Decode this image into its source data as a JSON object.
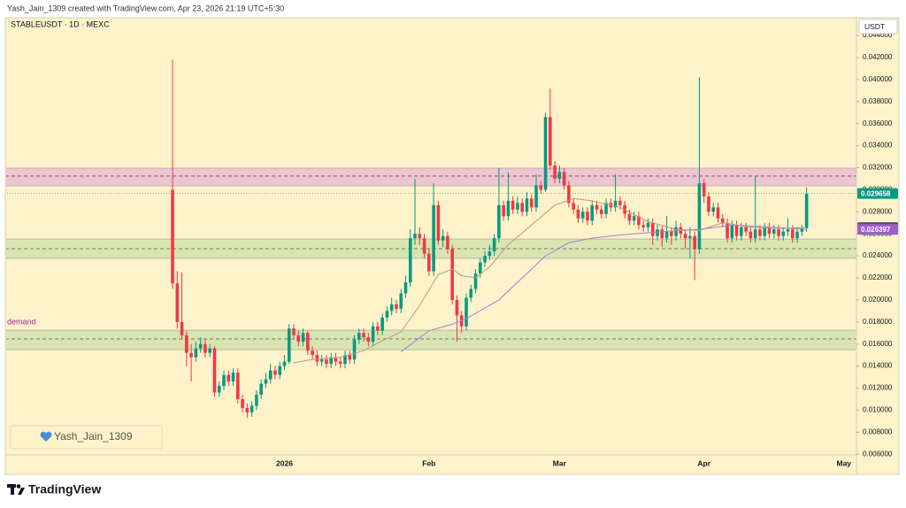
{
  "header": {
    "text": "Yash_Jain_1309 created with TradingView.com, Apr 23, 2026 21:19 UTC+5:30"
  },
  "watermark": {
    "text": "Yash_Jain_1309"
  },
  "footer": {
    "brand": "TradingView"
  },
  "chart_data": {
    "type": "candlestick",
    "title": "STABLEUSDT · 1D · MEXC",
    "unit_label": "USDT",
    "up_color": "#089981",
    "down_color": "#f23645",
    "background": "#fdf2c9",
    "open": [
      0.03,
      0.0215,
      0.018,
      0.0168,
      0.0152,
      0.0148,
      0.0156,
      0.016,
      0.0152,
      0.0156,
      0.0116,
      0.0122,
      0.0132,
      0.0126,
      0.0134,
      0.011,
      0.0102,
      0.0098,
      0.0104,
      0.0114,
      0.0124,
      0.0128,
      0.0136,
      0.0132,
      0.014,
      0.0144,
      0.0174,
      0.0168,
      0.0162,
      0.017,
      0.0154,
      0.015,
      0.0144,
      0.0146,
      0.0142,
      0.0148,
      0.0144,
      0.0142,
      0.015,
      0.0146,
      0.0164,
      0.017,
      0.0166,
      0.0162,
      0.0176,
      0.0172,
      0.0184,
      0.019,
      0.0196,
      0.0192,
      0.0206,
      0.0216,
      0.0256,
      0.026,
      0.0256,
      0.0242,
      0.0226,
      0.0286,
      0.0254,
      0.0258,
      0.0246,
      0.02,
      0.0186,
      0.0176,
      0.0202,
      0.021,
      0.0224,
      0.0234,
      0.024,
      0.0244,
      0.0256,
      0.0286,
      0.0276,
      0.029,
      0.0282,
      0.0288,
      0.028,
      0.0292,
      0.0284,
      0.0304,
      0.03,
      0.0366,
      0.0322,
      0.031,
      0.0316,
      0.0304,
      0.0288,
      0.0282,
      0.0274,
      0.028,
      0.0272,
      0.0286,
      0.0282,
      0.0278,
      0.0288,
      0.0284,
      0.029,
      0.0286,
      0.0278,
      0.0272,
      0.0276,
      0.0268,
      0.0266,
      0.027,
      0.0258,
      0.0264,
      0.0256,
      0.0262,
      0.0258,
      0.0266,
      0.026,
      0.0256,
      0.0258,
      0.0246,
      0.0306,
      0.0294,
      0.028,
      0.0284,
      0.0274,
      0.027,
      0.0256,
      0.0268,
      0.0258,
      0.0266,
      0.0262,
      0.0256,
      0.0264,
      0.0258,
      0.0266,
      0.026,
      0.0264,
      0.0258,
      0.0262,
      0.0264,
      0.0256,
      0.0262,
      0.0265
    ],
    "high": [
      0.0418,
      0.0226,
      0.0225,
      0.0172,
      0.016,
      0.0162,
      0.0166,
      0.0164,
      0.016,
      0.0158,
      0.0126,
      0.0136,
      0.0136,
      0.0138,
      0.0138,
      0.0114,
      0.0106,
      0.0108,
      0.0118,
      0.0128,
      0.0134,
      0.0142,
      0.014,
      0.0144,
      0.015,
      0.0178,
      0.0178,
      0.0172,
      0.0174,
      0.0172,
      0.0158,
      0.0154,
      0.015,
      0.015,
      0.0152,
      0.0152,
      0.0148,
      0.0154,
      0.0154,
      0.0168,
      0.0174,
      0.0174,
      0.017,
      0.018,
      0.018,
      0.0188,
      0.0194,
      0.0202,
      0.02,
      0.021,
      0.0222,
      0.0264,
      0.031,
      0.0266,
      0.026,
      0.0246,
      0.0306,
      0.029,
      0.0264,
      0.0262,
      0.025,
      0.0204,
      0.019,
      0.0206,
      0.0214,
      0.0228,
      0.0238,
      0.0244,
      0.025,
      0.026,
      0.032,
      0.029,
      0.0316,
      0.0294,
      0.0294,
      0.0292,
      0.0298,
      0.0296,
      0.0314,
      0.0308,
      0.037,
      0.0392,
      0.0326,
      0.0322,
      0.032,
      0.0308,
      0.0292,
      0.0286,
      0.0284,
      0.0284,
      0.029,
      0.029,
      0.0286,
      0.0292,
      0.0292,
      0.0314,
      0.0294,
      0.029,
      0.0282,
      0.028,
      0.028,
      0.0272,
      0.0274,
      0.0274,
      0.0268,
      0.0268,
      0.0276,
      0.0266,
      0.0272,
      0.027,
      0.0264,
      0.0266,
      0.0262,
      0.0402,
      0.031,
      0.0298,
      0.0288,
      0.0288,
      0.0278,
      0.0274,
      0.0272,
      0.0272,
      0.027,
      0.027,
      0.0266,
      0.0312,
      0.0268,
      0.027,
      0.027,
      0.0268,
      0.0268,
      0.0266,
      0.0274,
      0.0268,
      0.0266,
      0.0268,
      0.0302
    ],
    "low": [
      0.021,
      0.0174,
      0.0164,
      0.014,
      0.0126,
      0.0144,
      0.0152,
      0.0148,
      0.0148,
      0.0112,
      0.0112,
      0.0118,
      0.0122,
      0.0122,
      0.0106,
      0.0098,
      0.0093,
      0.0094,
      0.01,
      0.011,
      0.012,
      0.0124,
      0.0128,
      0.0128,
      0.0136,
      0.0142,
      0.0164,
      0.0158,
      0.0158,
      0.015,
      0.0146,
      0.014,
      0.014,
      0.0138,
      0.0138,
      0.014,
      0.0138,
      0.0138,
      0.0142,
      0.0142,
      0.016,
      0.0162,
      0.0158,
      0.0158,
      0.0168,
      0.0168,
      0.018,
      0.0186,
      0.0188,
      0.0188,
      0.0202,
      0.0212,
      0.025,
      0.025,
      0.0238,
      0.0222,
      0.0222,
      0.025,
      0.0248,
      0.0242,
      0.0196,
      0.0162,
      0.017,
      0.0172,
      0.0198,
      0.0206,
      0.022,
      0.023,
      0.0236,
      0.024,
      0.0252,
      0.0272,
      0.0272,
      0.0278,
      0.0278,
      0.0276,
      0.0276,
      0.028,
      0.028,
      0.0296,
      0.0298,
      0.0318,
      0.0306,
      0.0306,
      0.03,
      0.0284,
      0.0278,
      0.027,
      0.027,
      0.0268,
      0.0268,
      0.0278,
      0.0274,
      0.0274,
      0.028,
      0.028,
      0.0282,
      0.0274,
      0.0268,
      0.0268,
      0.0264,
      0.0262,
      0.0262,
      0.025,
      0.0254,
      0.0248,
      0.0252,
      0.025,
      0.0254,
      0.0256,
      0.0246,
      0.0238,
      0.0218,
      0.0242,
      0.0288,
      0.0276,
      0.0276,
      0.027,
      0.0266,
      0.0252,
      0.0252,
      0.0254,
      0.0254,
      0.0258,
      0.0252,
      0.0252,
      0.0254,
      0.0254,
      0.0256,
      0.0256,
      0.0254,
      0.0254,
      0.0258,
      0.0252,
      0.0252,
      0.0258,
      0.0262
    ],
    "close": [
      0.0215,
      0.018,
      0.0168,
      0.0152,
      0.0148,
      0.0156,
      0.016,
      0.0152,
      0.0156,
      0.0116,
      0.0122,
      0.0132,
      0.0126,
      0.0134,
      0.011,
      0.0102,
      0.0098,
      0.0104,
      0.0114,
      0.0124,
      0.0128,
      0.0136,
      0.0132,
      0.014,
      0.0144,
      0.0174,
      0.0168,
      0.0162,
      0.017,
      0.0154,
      0.015,
      0.0144,
      0.0146,
      0.0142,
      0.0148,
      0.0144,
      0.0142,
      0.015,
      0.0146,
      0.0164,
      0.017,
      0.0166,
      0.0162,
      0.0176,
      0.0172,
      0.0184,
      0.019,
      0.0196,
      0.0192,
      0.0206,
      0.0216,
      0.0256,
      0.026,
      0.0256,
      0.0242,
      0.0226,
      0.0286,
      0.0254,
      0.0258,
      0.0246,
      0.02,
      0.0186,
      0.0176,
      0.0202,
      0.021,
      0.0224,
      0.0234,
      0.024,
      0.0244,
      0.0256,
      0.0286,
      0.0276,
      0.029,
      0.0282,
      0.0288,
      0.028,
      0.0292,
      0.0284,
      0.0304,
      0.03,
      0.0366,
      0.0322,
      0.031,
      0.0316,
      0.0304,
      0.0288,
      0.0282,
      0.0274,
      0.028,
      0.0272,
      0.0286,
      0.0282,
      0.0278,
      0.0288,
      0.0284,
      0.029,
      0.0286,
      0.0278,
      0.0272,
      0.0276,
      0.0268,
      0.0266,
      0.027,
      0.0258,
      0.0264,
      0.0256,
      0.0262,
      0.0258,
      0.0266,
      0.026,
      0.0256,
      0.0258,
      0.0246,
      0.0306,
      0.0294,
      0.028,
      0.0284,
      0.0274,
      0.027,
      0.0256,
      0.0268,
      0.0258,
      0.0266,
      0.0262,
      0.0256,
      0.0264,
      0.0258,
      0.0266,
      0.026,
      0.0264,
      0.0258,
      0.0262,
      0.0264,
      0.0256,
      0.0262,
      0.0265,
      0.029658
    ],
    "series": [
      {
        "color": "#b89b7e",
        "label_color": "#5b4a78",
        "x": [
          26,
          30,
          36,
          41,
          45,
          49,
          53,
          57,
          60,
          62,
          65,
          68,
          72,
          77,
          82,
          86,
          90,
          96,
          102,
          108,
          113,
          118,
          124,
          130,
          136
        ],
        "values": [
          0.0143,
          0.0146,
          0.0148,
          0.0154,
          0.0163,
          0.0171,
          0.0195,
          0.0223,
          0.0228,
          0.0222,
          0.022,
          0.023,
          0.025,
          0.0268,
          0.0286,
          0.0292,
          0.029,
          0.0284,
          0.0271,
          0.0264,
          0.0263,
          0.027,
          0.0266,
          0.0265,
          0.026572
        ]
      },
      {
        "color": "#a67fd8",
        "label_color": "#9c5fc9",
        "x": [
          49,
          55,
          60,
          63,
          70,
          75,
          80,
          85,
          90,
          96,
          105,
          113,
          120,
          128,
          136
        ],
        "values": [
          0.0153,
          0.0172,
          0.0178,
          0.0183,
          0.02,
          0.022,
          0.024,
          0.0252,
          0.0256,
          0.0259,
          0.0262,
          0.0264,
          0.0268,
          0.0266,
          0.026397
        ]
      }
    ],
    "zones": [
      {
        "from": 0.03035,
        "to": 0.03196,
        "line": 0.03124,
        "color": "#ebb9d3"
      },
      {
        "from": 0.02377,
        "to": 0.02553,
        "line": 0.02465,
        "color": "#cfe0ad"
      },
      {
        "from": 0.01549,
        "to": 0.01726,
        "line": 0.01646,
        "color": "#cfe0ad",
        "label": "demand"
      }
    ],
    "ylim": [
      0.00594,
      0.04545
    ],
    "yticks": [
      {
        "value": 0.006,
        "label": "0.006000"
      },
      {
        "value": 0.008,
        "label": "0.008000"
      },
      {
        "value": 0.01,
        "label": "0.010000"
      },
      {
        "value": 0.012,
        "label": "0.012000"
      },
      {
        "value": 0.014,
        "label": "0.014000"
      },
      {
        "value": 0.016,
        "label": "0.016000"
      },
      {
        "value": 0.018,
        "label": "0.018000"
      },
      {
        "value": 0.02,
        "label": "0.020000"
      },
      {
        "value": 0.022,
        "label": "0.022000"
      },
      {
        "value": 0.024,
        "label": "0.024000"
      },
      {
        "value": 0.026,
        "label": "0.026000"
      },
      {
        "value": 0.028,
        "label": "0.028000"
      },
      {
        "value": 0.03,
        "label": "0.030000"
      },
      {
        "value": 0.032,
        "label": "0.032000"
      },
      {
        "value": 0.034,
        "label": "0.034000"
      },
      {
        "value": 0.036,
        "label": "0.036000"
      },
      {
        "value": 0.038,
        "label": "0.038000"
      },
      {
        "value": 0.04,
        "label": "0.040000"
      },
      {
        "value": 0.042,
        "label": "0.042000"
      },
      {
        "value": 0.044,
        "label": "0.044000"
      }
    ],
    "xlim": [
      -35.5,
      146.7
    ],
    "xticks": [
      {
        "value": 24,
        "label": "2026"
      },
      {
        "value": 55,
        "label": "Feb"
      },
      {
        "value": 83,
        "label": "Mar"
      },
      {
        "value": 114,
        "label": "Apr"
      },
      {
        "value": 144,
        "label": "May"
      }
    ],
    "grid": false
  }
}
